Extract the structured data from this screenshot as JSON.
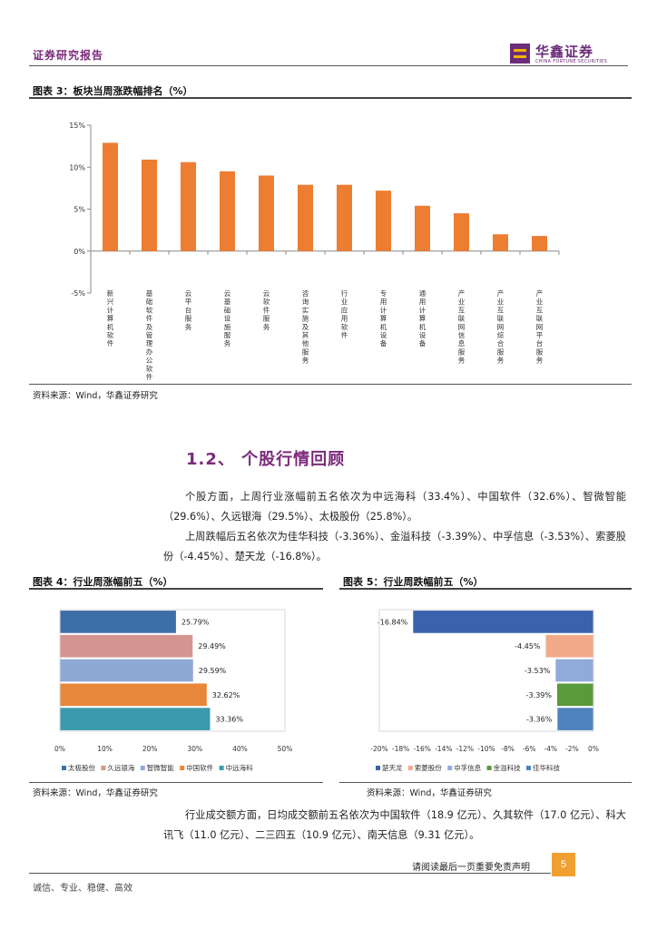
{
  "header": {
    "report_label": "证券研究报告",
    "logo_cn": "华鑫证券",
    "logo_en": "CHINA FORTUNE SECURITIES"
  },
  "figure3": {
    "title": "图表 3：板块当周涨跌幅排名（%）",
    "source": "资料来源：Wind，华鑫证券研究"
  },
  "section": {
    "title": "1.2、 个股行情回顾"
  },
  "paragraphs": [
    "个股方面，上周行业涨幅前五名依次为中远海科（33.4%）、中国软件（32.6%）、智微智能（29.6%）、久远银海（29.5%）、太极股份（25.8%）。",
    "上周跌幅后五名依次为佳华科技（-3.36%）、金溢科技（-3.39%）、中孚信息（-3.53%）、索菱股份（-4.45%）、楚天龙（-16.8%）。"
  ],
  "figure4": {
    "title": "图表 4：行业周涨幅前五（%）",
    "source": "资料来源：Wind，华鑫证券研究"
  },
  "figure5": {
    "title": "图表 5：行业周跌幅前五（%）",
    "source": "资料来源：Wind，华鑫证券研究"
  },
  "closing_paragraph": "行业成交额方面，日均成交额前五名依次为中国软件（18.9 亿元）、久其软件（17.0 亿元）、科大讯飞（11.0 亿元）、二三四五（10.9 亿元）、南天信息（9.31 亿元）。",
  "footer": {
    "disclaimer_note": "请阅读最后一页重要免责声明",
    "page_number": "5",
    "motto": "诚信、专业、稳健、高效"
  },
  "chart_data": [
    {
      "type": "bar",
      "categories": [
        "新兴计算机软件",
        "基础软件及管理办公软件",
        "云平台服务",
        "云基础设施服务",
        "云软件服务",
        "咨询实施及其他服务",
        "行业应用软件",
        "专用计算机设备",
        "通用计算机设备",
        "产业互联网信息服务",
        "产业互联网综合服务",
        "产业互联网平台服务"
      ],
      "values": [
        12.9,
        10.9,
        10.6,
        9.5,
        9.0,
        7.9,
        7.9,
        7.2,
        5.4,
        4.5,
        2.0,
        1.8
      ],
      "ylim": [
        -5,
        15
      ],
      "yticks": [
        "-5%",
        "0%",
        "5%",
        "10%",
        "15%"
      ],
      "ytick_values": [
        -5,
        0,
        5,
        10,
        15
      ],
      "color": "#ed7d31",
      "grid": false
    },
    {
      "type": "bar",
      "orientation": "horizontal",
      "series": [
        {
          "name": "太极股份",
          "value": 25.79,
          "label": "25.79%",
          "color": "#3e6ea8"
        },
        {
          "name": "久远银海",
          "value": 29.49,
          "label": "29.49%",
          "color": "#d49590"
        },
        {
          "name": "智微智能",
          "value": 29.59,
          "label": "29.59%",
          "color": "#8fa9d6"
        },
        {
          "name": "中国软件",
          "value": 32.62,
          "label": "32.62%",
          "color": "#e8873a"
        },
        {
          "name": "中远海科",
          "value": 33.36,
          "label": "33.36%",
          "color": "#3b9aad"
        }
      ],
      "xlim": [
        0,
        50
      ],
      "xticks": [
        "0%",
        "10%",
        "20%",
        "30%",
        "40%",
        "50%"
      ],
      "xtick_values": [
        0,
        10,
        20,
        30,
        40,
        50
      ],
      "legend": "bottom",
      "grid": false
    },
    {
      "type": "bar",
      "orientation": "horizontal",
      "series": [
        {
          "name": "楚天龙",
          "value": -16.84,
          "label": "-16.84%",
          "color": "#3a62ad"
        },
        {
          "name": "索菱股份",
          "value": -4.45,
          "label": "-4.45%",
          "color": "#f2a98a"
        },
        {
          "name": "中孚信息",
          "value": -3.53,
          "label": "-3.53%",
          "color": "#90aad9"
        },
        {
          "name": "金溢科技",
          "value": -3.39,
          "label": "-3.39%",
          "color": "#5a9a3c"
        },
        {
          "name": "佳华科技",
          "value": -3.36,
          "label": "-3.36%",
          "color": "#4f83bd"
        }
      ],
      "xlim": [
        -20,
        0
      ],
      "xticks": [
        "-20%",
        "-18%",
        "-16%",
        "-14%",
        "-12%",
        "-10%",
        "-8%",
        "-6%",
        "-4%",
        "-2%",
        "0%"
      ],
      "xtick_values": [
        -20,
        -18,
        -16,
        -14,
        -12,
        -10,
        -8,
        -6,
        -4,
        -2,
        0
      ],
      "legend": "bottom",
      "grid": false
    }
  ]
}
